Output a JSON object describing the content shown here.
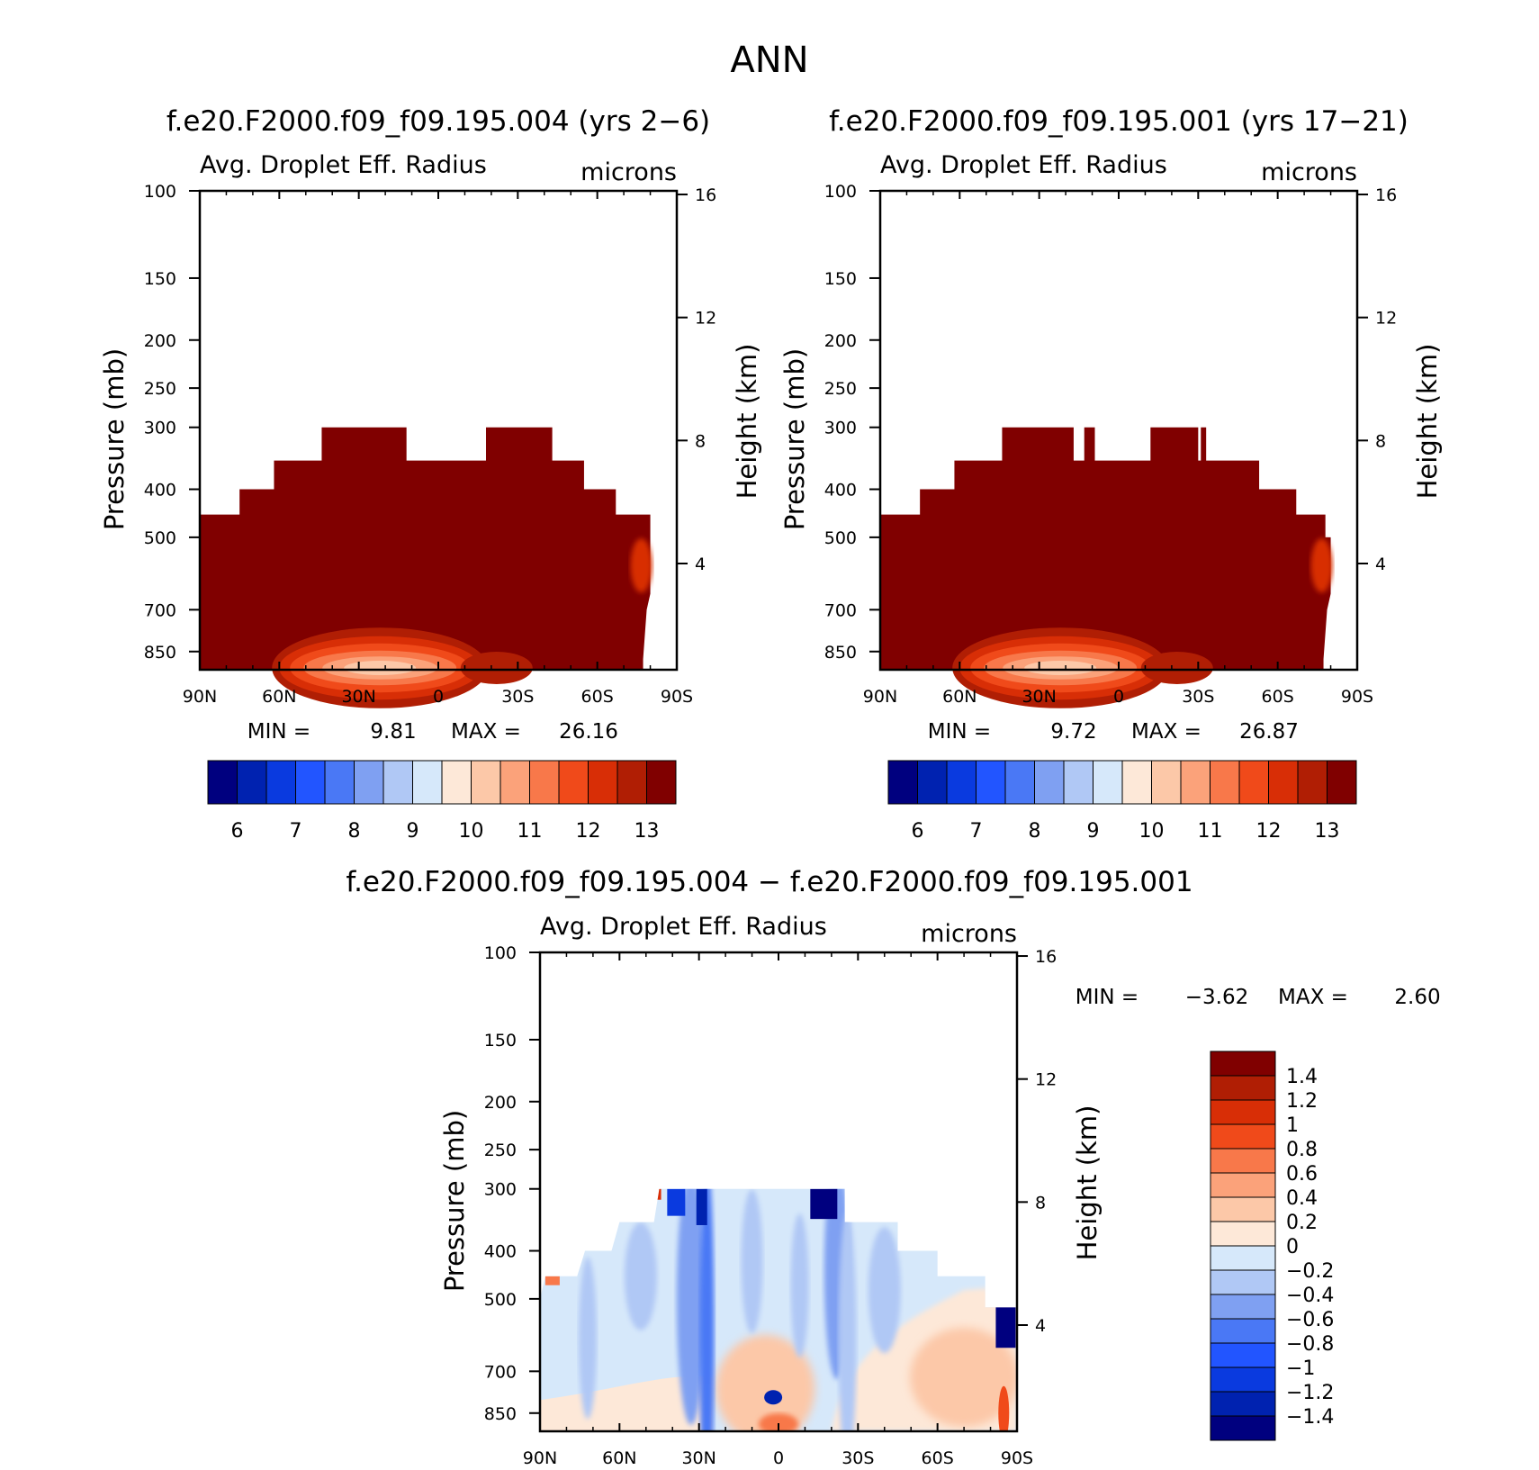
{
  "figure": {
    "title": "ANN"
  },
  "chart_data": [
    {
      "type": "heatmap",
      "title": "f.e20.F2000.f09_f09.195.004 (yrs 2-6)",
      "variable": "Avg. Droplet Eff. Radius",
      "units": "microns",
      "ylabel": "Pressure (mb)",
      "ylabel_right": "Height (km)",
      "x_ticks": [
        "90N",
        "60N",
        "30N",
        "0",
        "30S",
        "60S",
        "90S"
      ],
      "y_ticks": [
        100,
        150,
        200,
        250,
        300,
        400,
        500,
        700,
        850
      ],
      "y_ticks_right": [
        16,
        12,
        8,
        4
      ],
      "ylim": [
        100,
        925
      ],
      "y_scale": "log",
      "min_label": "MIN =",
      "min_value": "9.81",
      "max_label": "MAX =",
      "max_value": "26.16",
      "cloud_top_mb": [
        {
          "lat": 90,
          "top": 450
        },
        {
          "lat": 75,
          "top": 400
        },
        {
          "lat": 62,
          "top": 350
        },
        {
          "lat": 44,
          "top": 300
        },
        {
          "lat": 12,
          "top": 350
        },
        {
          "lat": -18,
          "top": 300
        },
        {
          "lat": -43,
          "top": 350
        },
        {
          "lat": -55,
          "top": 400
        },
        {
          "lat": -67,
          "top": 450
        },
        {
          "lat": -80,
          "top": 500
        }
      ],
      "near_surface_low_values": "9.8-12 microns near 850-925 mb between 45N and 30S",
      "colorbar": {
        "levels": [
          "6",
          "7",
          "8",
          "9",
          "10",
          "11",
          "12",
          "13"
        ],
        "colors": [
          "#00007F",
          "#0022B0",
          "#0A3ADF",
          "#2255FF",
          "#4A78F5",
          "#7FA0F2",
          "#B0C8F5",
          "#D6E8FA",
          "#FDE8D8",
          "#FCC8A8",
          "#FBA27A",
          "#F8784A",
          "#F04A1A",
          "#D82E06",
          "#B01E04",
          "#800000"
        ]
      }
    },
    {
      "type": "heatmap",
      "title": "f.e20.F2000.f09_f09.195.001 (yrs 17-21)",
      "variable": "Avg. Droplet Eff. Radius",
      "units": "microns",
      "ylabel": "Pressure (mb)",
      "ylabel_right": "Height (km)",
      "x_ticks": [
        "90N",
        "60N",
        "30N",
        "0",
        "30S",
        "60S",
        "90S"
      ],
      "y_ticks": [
        100,
        150,
        200,
        250,
        300,
        400,
        500,
        700,
        850
      ],
      "y_ticks_right": [
        16,
        12,
        8,
        4
      ],
      "ylim": [
        100,
        925
      ],
      "y_scale": "log",
      "min_label": "MIN =",
      "min_value": "9.72",
      "max_label": "MAX =",
      "max_value": "26.87",
      "near_surface_low_values": "9.7-12 microns near 850-925 mb between 45N and 30S",
      "colorbar": {
        "levels": [
          "6",
          "7",
          "8",
          "9",
          "10",
          "11",
          "12",
          "13"
        ],
        "colors": [
          "#00007F",
          "#0022B0",
          "#0A3ADF",
          "#2255FF",
          "#4A78F5",
          "#7FA0F2",
          "#B0C8F5",
          "#D6E8FA",
          "#FDE8D8",
          "#FCC8A8",
          "#FBA27A",
          "#F8784A",
          "#F04A1A",
          "#D82E06",
          "#B01E04",
          "#800000"
        ]
      }
    },
    {
      "type": "heatmap",
      "title": "f.e20.F2000.f09_f09.195.004 - f.e20.F2000.f09_f09.195.001",
      "variable": "Avg. Droplet Eff. Radius",
      "units": "microns",
      "ylabel": "Pressure (mb)",
      "ylabel_right": "Height (km)",
      "x_ticks": [
        "90N",
        "60N",
        "30N",
        "0",
        "30S",
        "60S",
        "90S"
      ],
      "y_ticks": [
        100,
        150,
        200,
        250,
        300,
        400,
        500,
        700,
        850
      ],
      "y_ticks_right": [
        16,
        12,
        8,
        4
      ],
      "ylim": [
        100,
        925
      ],
      "y_scale": "log",
      "min_label": "MIN =",
      "min_value": "-3.62",
      "max_label": "MAX =",
      "max_value": "2.60",
      "colorbar": {
        "orientation": "vertical",
        "levels": [
          "1.4",
          "1.2",
          "1",
          "0.8",
          "0.6",
          "0.4",
          "0.2",
          "0",
          "-0.2",
          "-0.4",
          "-0.6",
          "-0.8",
          "-1",
          "-1.2",
          "-1.4"
        ],
        "colors": [
          "#800000",
          "#B01E04",
          "#D82E06",
          "#F04A1A",
          "#F8784A",
          "#FBA27A",
          "#FCC8A8",
          "#FDE8D8",
          "#D6E8FA",
          "#B0C8F5",
          "#7FA0F2",
          "#4A78F5",
          "#2255FF",
          "#0A3ADF",
          "#0022B0",
          "#00007F"
        ]
      }
    }
  ]
}
